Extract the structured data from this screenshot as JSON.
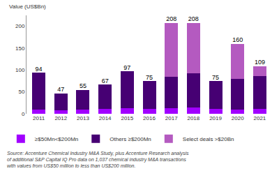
{
  "chart_data": {
    "type": "bar",
    "stacked": true,
    "ylabel": "Value (US$Bn)",
    "categories": [
      "2011",
      "2012",
      "2013",
      "2014",
      "2015",
      "2016",
      "2017",
      "2018",
      "2019",
      "2020",
      "2021"
    ],
    "series": [
      {
        "name": "≥$50Mn<$200Mn",
        "color": "#a100ff",
        "values": [
          10,
          8,
          9,
          11,
          13,
          11,
          12,
          14,
          11,
          10,
          11
        ]
      },
      {
        "name": "Others ≥$200Mn",
        "color": "#460073",
        "values": [
          84,
          39,
          46,
          56,
          84,
          64,
          73,
          79,
          64,
          70,
          75
        ]
      },
      {
        "name": "Select deals >$20Bn",
        "color": "#b45ac0",
        "values": [
          0,
          0,
          0,
          0,
          0,
          0,
          123,
          115,
          0,
          80,
          23
        ]
      }
    ],
    "totals": [
      94,
      47,
      55,
      67,
      97,
      75,
      208,
      208,
      75,
      160,
      109
    ],
    "ylim": [
      0,
      225
    ],
    "yticks": [
      0,
      50,
      100,
      150,
      200
    ],
    "grid": false,
    "legend": "bottom",
    "source": [
      "Source: Accenture Chemical Industry M&A Study, plus Accenture Research analysis",
      "of additional S&P Capital IQ Pro data on 1,037 chemical industry M&A transactions",
      "with values from US$50 million to less than US$200 million."
    ]
  }
}
